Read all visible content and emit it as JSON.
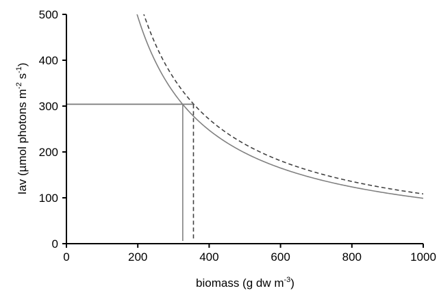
{
  "chart_data": {
    "type": "line",
    "title": "",
    "xlabel": "biomass (g dw m",
    "xlabel_sup": "-3",
    "xlabel_end": ")",
    "ylabel": "Iav (µmol photons  m",
    "ylabel_sup1": "-2",
    "ylabel_mid": " s",
    "ylabel_sup2": "-1",
    "ylabel_end": ")",
    "xlim": [
      0,
      1000
    ],
    "ylim": [
      0,
      500
    ],
    "x_ticks": [
      0,
      200,
      400,
      600,
      800,
      1000
    ],
    "y_ticks": [
      0,
      100,
      200,
      300,
      400,
      500
    ],
    "grid": false,
    "legend": "none",
    "series": [
      {
        "style": "solid",
        "color": "#808080",
        "k": 99000,
        "x_range": [
          185,
          1000
        ]
      },
      {
        "style": "dashed",
        "color": "#404040",
        "k": 108500,
        "x_range": [
          198,
          1000
        ]
      }
    ],
    "threshold_y": 304,
    "drop_lines": [
      {
        "x": 326,
        "style": "solid"
      },
      {
        "x": 356,
        "style": "dashed"
      }
    ]
  }
}
